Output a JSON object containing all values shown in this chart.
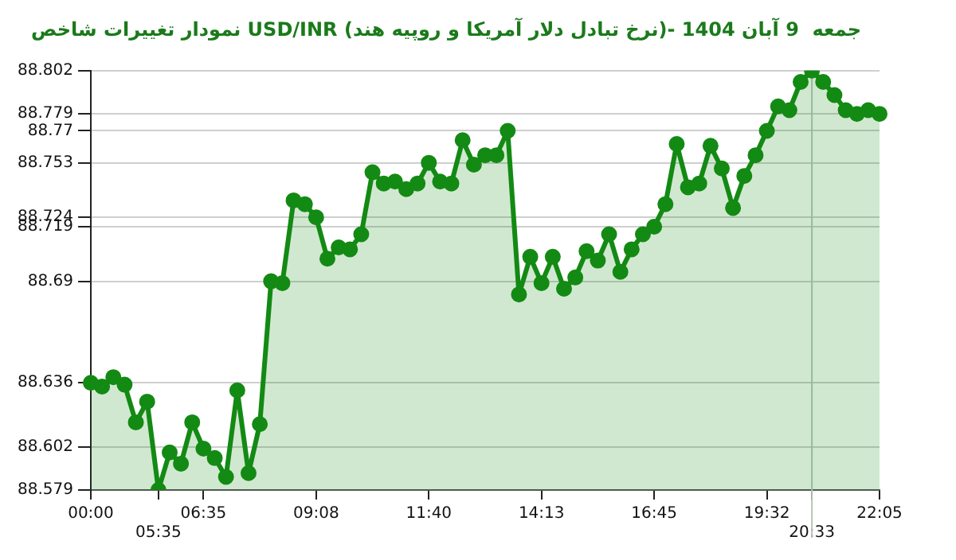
{
  "chart_data": {
    "type": "area",
    "title": "نمودار تغییرات شاخص USD/INR (نرخ تبادل دلار آمریکا و روپیه هند)- جمعه  9 آبان 1404",
    "categories": [
      "00:00",
      null,
      null,
      null,
      null,
      null,
      "05:35",
      null,
      null,
      null,
      "06:35",
      null,
      null,
      null,
      null,
      null,
      null,
      null,
      null,
      null,
      "09:08",
      null,
      null,
      null,
      null,
      null,
      null,
      null,
      null,
      null,
      "11:40",
      null,
      null,
      null,
      null,
      null,
      null,
      null,
      null,
      null,
      "14:13",
      null,
      null,
      null,
      null,
      null,
      null,
      null,
      null,
      null,
      "16:45",
      null,
      null,
      null,
      null,
      null,
      null,
      null,
      null,
      null,
      "19:32",
      null,
      null,
      null,
      "20:33",
      null,
      null,
      null,
      null,
      null,
      "22:05"
    ],
    "series": [
      {
        "color": "#138a13",
        "values": [
          88.636,
          88.634,
          88.639,
          88.635,
          88.615,
          88.626,
          88.579,
          88.599,
          88.593,
          88.615,
          88.601,
          88.596,
          88.586,
          88.632,
          88.588,
          88.614,
          88.69,
          88.689,
          88.733,
          88.731,
          88.724,
          88.702,
          88.708,
          88.707,
          88.715,
          88.748,
          88.742,
          88.743,
          88.739,
          88.742,
          88.753,
          88.743,
          88.742,
          88.765,
          88.752,
          88.757,
          88.757,
          88.77,
          88.683,
          88.703,
          88.689,
          88.703,
          88.686,
          88.692,
          88.706,
          88.701,
          88.715,
          88.695,
          88.707,
          88.715,
          88.719,
          88.731,
          88.763,
          88.74,
          88.742,
          88.762,
          88.75,
          88.729,
          88.746,
          88.757,
          88.77,
          88.783,
          88.781,
          88.796,
          88.802,
          88.796,
          88.789,
          88.781,
          88.779,
          88.781,
          88.779
        ]
      }
    ],
    "ylim": [
      88.579,
      88.802
    ],
    "yticks": [
      88.579,
      88.602,
      88.636,
      88.69,
      88.719,
      88.724,
      88.753,
      88.77,
      88.779,
      88.802
    ],
    "grid": "y",
    "marker": "circle",
    "line_style": "solid",
    "legend": false,
    "ref_lines": [
      {
        "axis": "x",
        "value": "20:33",
        "color": "#b8c4b8"
      }
    ]
  }
}
